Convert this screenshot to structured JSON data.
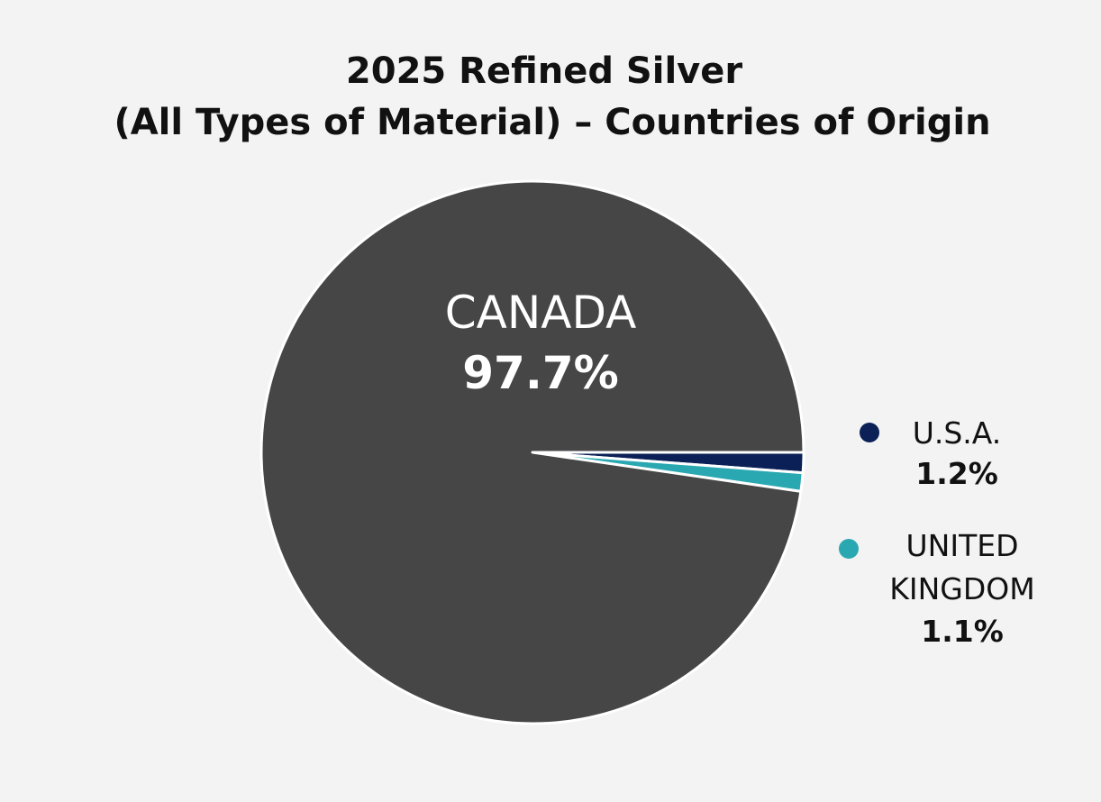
{
  "chart_data": {
    "type": "pie",
    "title_lines": [
      "2025 Refined Silver",
      "(All Types of Material) – Countries of Origin"
    ],
    "slices": [
      {
        "label": "CANADA",
        "label_lines": [
          "CANADA"
        ],
        "value": 97.7,
        "value_label": "97.7%",
        "color": "#464646"
      },
      {
        "label": "U.S.A.",
        "label_lines": [
          "U.S.A."
        ],
        "value": 1.2,
        "value_label": "1.2%",
        "color": "#0b2057"
      },
      {
        "label": "UNITED KINGDOM",
        "label_lines": [
          "UNITED",
          "KINGDOM"
        ],
        "value": 1.1,
        "value_label": "1.1%",
        "color": "#2aa8b2"
      }
    ],
    "legend_placement": "right"
  }
}
